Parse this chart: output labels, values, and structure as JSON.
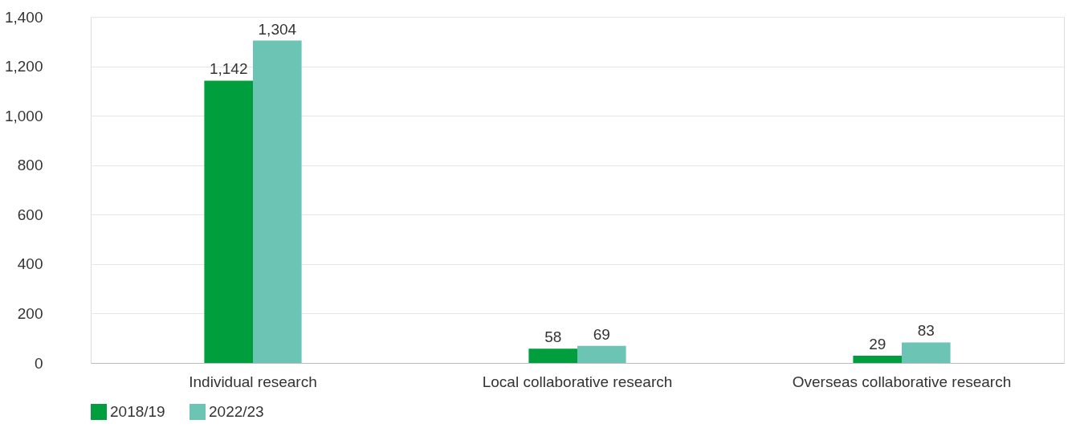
{
  "chart_data": {
    "type": "bar",
    "categories": [
      "Individual research",
      "Local collaborative research",
      "Overseas collaborative research"
    ],
    "series": [
      {
        "name": "2018/19",
        "color": "#009e3d",
        "values": [
          1142,
          58,
          29
        ],
        "value_labels": [
          "1,142",
          "58",
          "29"
        ]
      },
      {
        "name": "2022/23",
        "color": "#6cc4b4",
        "values": [
          1304,
          69,
          83
        ],
        "value_labels": [
          "1,304",
          "69",
          "83"
        ]
      }
    ],
    "ylim": [
      0,
      1400
    ],
    "yticks": [
      0,
      {
        "value": 200,
        "label": "200"
      },
      {
        "value": 400,
        "label": "400"
      },
      {
        "value": 600,
        "label": "600"
      },
      {
        "value": 800,
        "label": "800"
      },
      {
        "value": 1000,
        "label": "1,000"
      },
      {
        "value": 1200,
        "label": "1,200"
      },
      {
        "value": 1400,
        "label": "1,400"
      }
    ],
    "grid": "y",
    "legend": "bottom"
  }
}
